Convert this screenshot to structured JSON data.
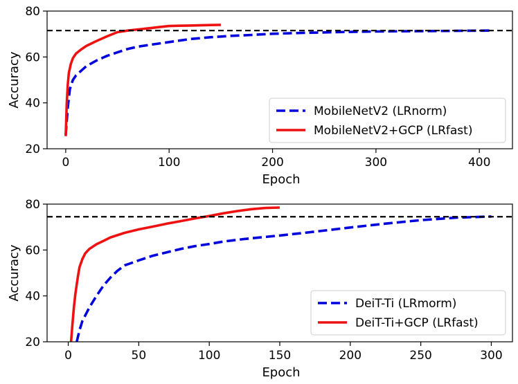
{
  "chart_data": [
    {
      "type": "line",
      "xlabel": "Epoch",
      "ylabel": "Accuracy",
      "xlim": [
        -18,
        432
      ],
      "ylim": [
        20,
        80
      ],
      "xticks": [
        "0",
        "100",
        "200",
        "300",
        "400"
      ],
      "yticks": [
        "20",
        "40",
        "60",
        "80"
      ],
      "grid": false,
      "legend_position": "bottom-right",
      "reference_line": {
        "y": 71.5,
        "style": "dashed",
        "color": "#000000"
      },
      "series": [
        {
          "name": "MobileNetV2 (LRnorm)",
          "color": "#0000dd",
          "style": "dashed",
          "x": [
            0,
            2,
            4,
            7,
            10,
            15,
            20,
            30,
            40,
            50,
            60,
            70,
            80,
            100,
            120,
            140,
            160,
            180,
            200,
            230,
            260,
            300,
            350,
            410
          ],
          "y": [
            26,
            38,
            46,
            50,
            52,
            54,
            56,
            58.5,
            60.5,
            62,
            63.5,
            64.5,
            65.2,
            66.5,
            67.8,
            68.6,
            69.2,
            69.6,
            70.1,
            70.5,
            70.8,
            71.1,
            71.3,
            71.5
          ]
        },
        {
          "name": "MobileNetV2+GCP (LRfast)",
          "color": "#ee1111",
          "style": "solid",
          "x": [
            0,
            1,
            2,
            3,
            5,
            7,
            10,
            15,
            20,
            30,
            40,
            50,
            60,
            70,
            80,
            90,
            100,
            110,
            120,
            130,
            140,
            150
          ],
          "y": [
            25.5,
            40,
            48,
            53,
            57,
            59.5,
            61.5,
            63.3,
            64.8,
            67,
            69,
            70.8,
            71.5,
            72,
            72.5,
            73,
            73.5,
            73.6,
            73.7,
            73.8,
            73.9,
            74
          ]
        }
      ]
    },
    {
      "type": "line",
      "xlabel": "Epoch",
      "ylabel": "Accuracy",
      "xlim": [
        -15,
        315
      ],
      "ylim": [
        20,
        80
      ],
      "xticks": [
        "0",
        "50",
        "100",
        "150",
        "200",
        "250",
        "300"
      ],
      "yticks": [
        "20",
        "40",
        "60",
        "80"
      ],
      "grid": false,
      "legend_position": "bottom-right",
      "reference_line": {
        "y": 74.5,
        "style": "dashed",
        "color": "#000000"
      },
      "series": [
        {
          "name": "DeiT-Ti (LRmorm)",
          "color": "#0000dd",
          "style": "dashed",
          "x": [
            6,
            8,
            10,
            15,
            20,
            25,
            30,
            35,
            40,
            50,
            60,
            70,
            80,
            90,
            100,
            110,
            125,
            150,
            175,
            200,
            225,
            250,
            275,
            300
          ],
          "y": [
            20,
            25,
            29,
            35,
            40,
            44.5,
            48,
            51,
            53.3,
            55.5,
            57.5,
            59,
            60.5,
            61.7,
            62.6,
            63.7,
            64.8,
            66.3,
            68,
            69.8,
            71.5,
            73,
            74.1,
            74.6
          ]
        },
        {
          "name": "DeiT-Ti+GCP (LRfast)",
          "color": "#ee1111",
          "style": "solid",
          "x": [
            2,
            3,
            4,
            5,
            6,
            7,
            8,
            10,
            12,
            15,
            20,
            25,
            30,
            40,
            50,
            60,
            70,
            80,
            90,
            100,
            110,
            120,
            130,
            140,
            150
          ],
          "y": [
            20,
            28,
            35,
            40.5,
            45,
            49,
            52.5,
            56,
            58.5,
            60.5,
            62.5,
            64,
            65.5,
            67.5,
            69,
            70.2,
            71.5,
            72.6,
            73.8,
            74.8,
            76,
            77,
            77.8,
            78.3,
            78.5
          ]
        }
      ]
    }
  ]
}
